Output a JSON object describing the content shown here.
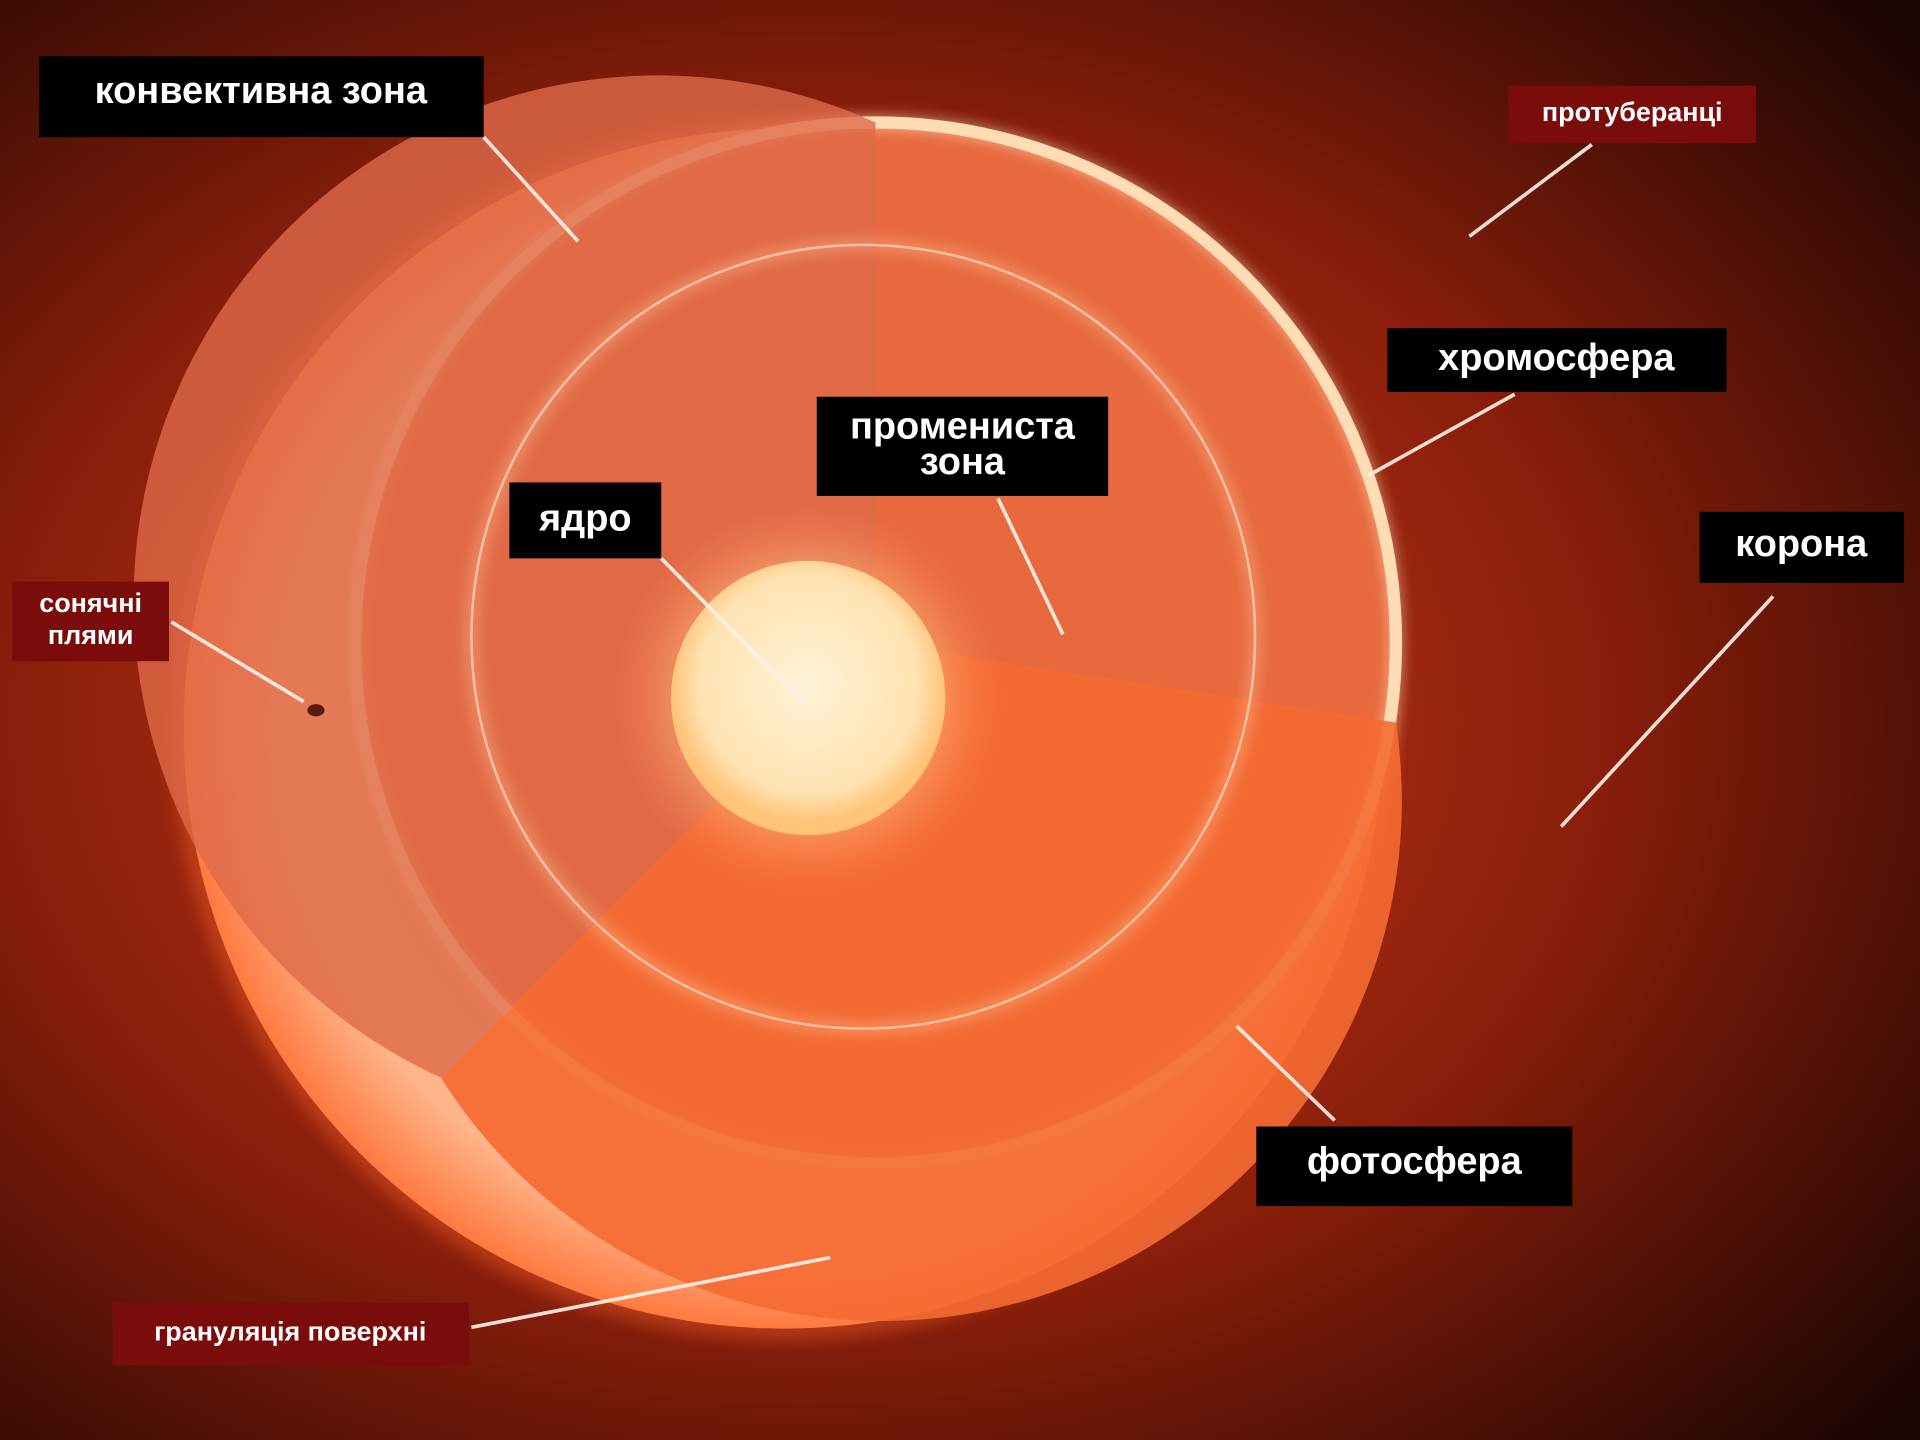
{
  "labels": {
    "convective_zone": "конвективна зона",
    "prominences": "протуберанці",
    "chromosphere": "хромосфера",
    "radiative_zone": [
      "промениста",
      "зона"
    ],
    "core": "ядро",
    "corona": "корона",
    "sunspots": [
      "сонячні",
      "плями"
    ],
    "photosphere": "фотосфера",
    "granulation": "грануляція поверхні"
  }
}
